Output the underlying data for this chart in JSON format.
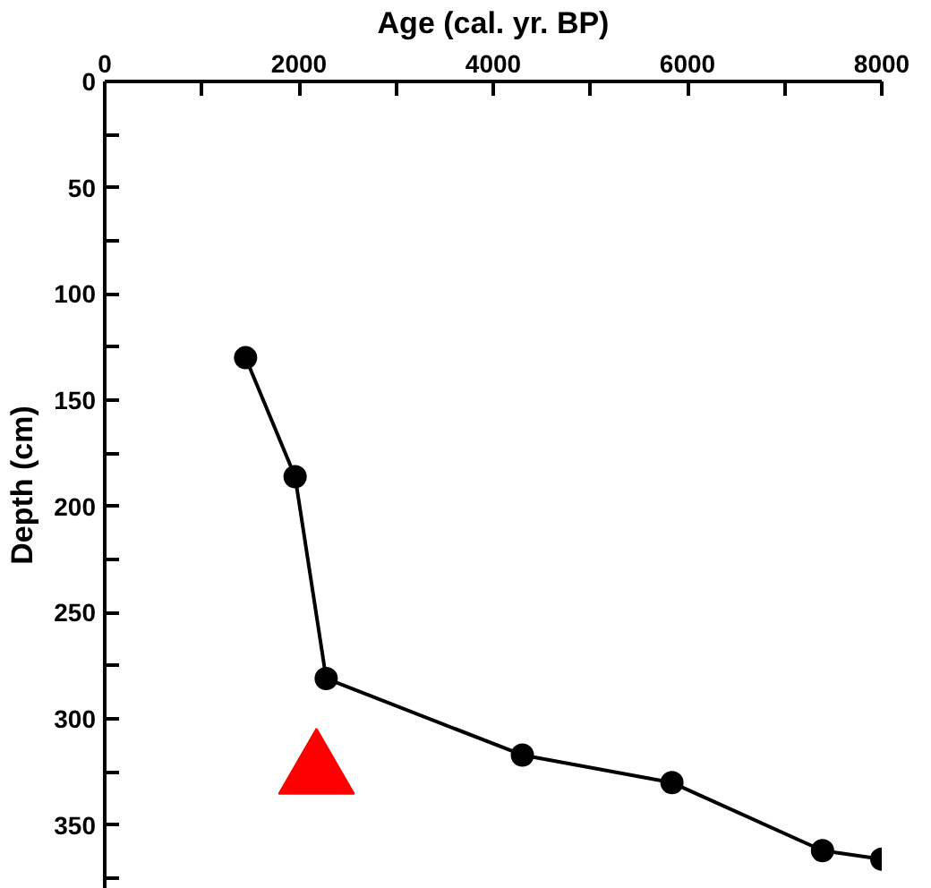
{
  "chart_data": {
    "type": "line",
    "xlabel": "Age (cal. yr. BP)",
    "ylabel": "Depth (cm)",
    "xlim": [
      0,
      8000
    ],
    "ylim": [
      380,
      0
    ],
    "xticks": [
      0,
      {
        "value": 1000,
        "label": null
      },
      2000,
      {
        "value": 3000,
        "label": null
      },
      4000,
      {
        "value": 5000,
        "label": null
      },
      6000,
      {
        "value": 7000,
        "label": null
      },
      8000
    ],
    "yticks": [
      0,
      {
        "value": 25,
        "label": null
      },
      50,
      {
        "value": 75,
        "label": null
      },
      100,
      {
        "value": 125,
        "label": null
      },
      150,
      {
        "value": 175,
        "label": null
      },
      200,
      {
        "value": 225,
        "label": null
      },
      250,
      {
        "value": 275,
        "label": null
      },
      300,
      {
        "value": 325,
        "label": null
      },
      350,
      {
        "value": 375,
        "label": null
      }
    ],
    "grid": false,
    "marker": "circle",
    "line_style": "solid",
    "series": [
      {
        "color": "#000000",
        "x": [
          1450,
          1960,
          2280,
          4300,
          5840,
          7390,
          8000
        ],
        "values": [
          130,
          186,
          281,
          317,
          330,
          362,
          366
        ]
      },
      {
        "type": "scatter",
        "marker": "triangle",
        "color": "#ff0000",
        "x": [
          2180
        ],
        "values": [
          325
        ]
      }
    ]
  }
}
